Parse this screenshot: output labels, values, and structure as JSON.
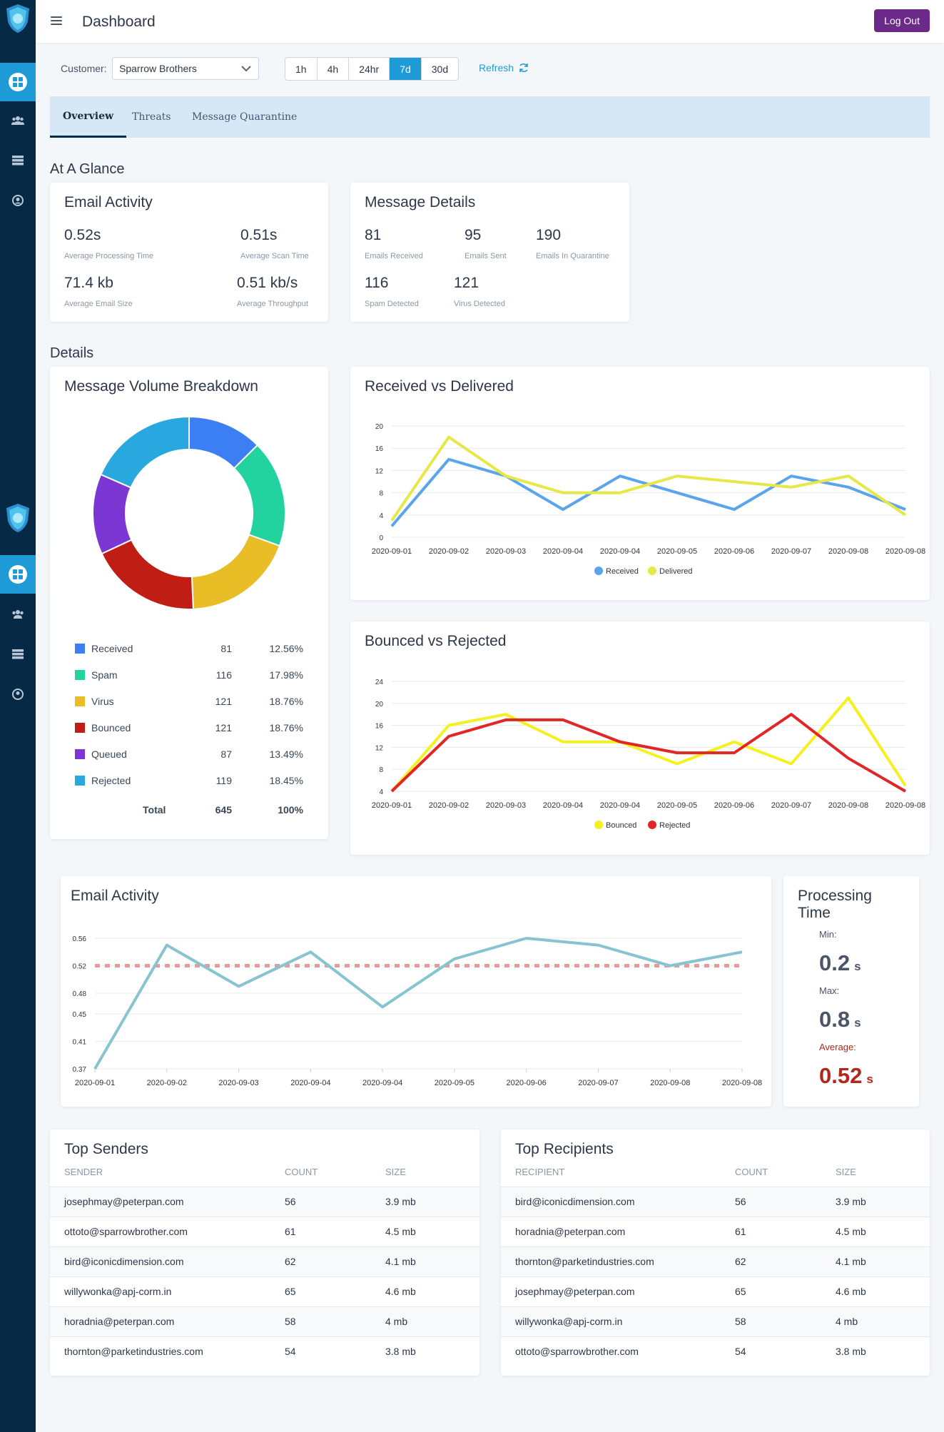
{
  "header": {
    "title": "Dashboard",
    "logout_label": "Log Out"
  },
  "sidebar": {
    "items": [
      {
        "name": "dashboard",
        "icon": "dashboard-icon"
      },
      {
        "name": "users",
        "icon": "users-icon"
      },
      {
        "name": "servers",
        "icon": "server-icon"
      },
      {
        "name": "account",
        "icon": "user-circle-icon"
      }
    ]
  },
  "filter": {
    "customer_label": "Customer:",
    "customer_value": "Sparrow Brothers",
    "ranges": [
      "1h",
      "4h",
      "24hr",
      "7d",
      "30d"
    ],
    "active_range": "7d",
    "refresh_label": "Refresh"
  },
  "tabs": [
    "Overview",
    "Threats",
    "Message Quarantine"
  ],
  "active_tab": "Overview",
  "sections": {
    "glance": "At A Glance",
    "details": "Details"
  },
  "email_activity_card": {
    "title": "Email Activity",
    "metrics": [
      {
        "value": "0.52s",
        "label": "Average Processing Time"
      },
      {
        "value": "0.51s",
        "label": "Average Scan Time"
      },
      {
        "value": "71.4 kb",
        "label": "Average Email Size"
      },
      {
        "value": "0.51 kb/s",
        "label": "Average Throughput"
      }
    ]
  },
  "message_details_card": {
    "title": "Message Details",
    "metrics": [
      {
        "value": "81",
        "label": "Emails Received"
      },
      {
        "value": "95",
        "label": "Emails Sent"
      },
      {
        "value": "190",
        "label": "Emails In Quarantine"
      },
      {
        "value": "116",
        "label": "Spam Detected"
      },
      {
        "value": "121",
        "label": "Virus Detected"
      }
    ]
  },
  "volume_card": {
    "title": "Message Volume Breakdown",
    "total_label": "Total",
    "total_count": "645",
    "total_pct": "100%"
  },
  "received_chart_title": "Received vs Delivered",
  "bounced_chart_title": "Bounced vs Rejected",
  "activity_chart_title": "Email Activity",
  "processing": {
    "title": "Processing Time",
    "min_label": "Min:",
    "min_value": "0.2",
    "min_unit": "s",
    "max_label": "Max:",
    "max_value": "0.8",
    "max_unit": "s",
    "avg_label": "Average:",
    "avg_value": "0.52",
    "avg_unit": "s"
  },
  "top_senders": {
    "title": "Top Senders",
    "columns": [
      "SENDER",
      "COUNT",
      "SIZE"
    ],
    "rows": [
      [
        "josephmay@peterpan.com",
        "56",
        "3.9 mb"
      ],
      [
        "ottoto@sparrowbrother.com",
        "61",
        "4.5 mb"
      ],
      [
        "bird@iconicdimension.com",
        "62",
        "4.1 mb"
      ],
      [
        "willywonka@apj-corm.in",
        "65",
        "4.6 mb"
      ],
      [
        "horadnia@peterpan.com",
        "58",
        "4 mb"
      ],
      [
        "thornton@parketindustries.com",
        "54",
        "3.8 mb"
      ]
    ]
  },
  "top_recipients": {
    "title": "Top Recipients",
    "columns": [
      "RECIPIENT",
      "COUNT",
      "SIZE"
    ],
    "rows": [
      [
        "bird@iconicdimension.com",
        "56",
        "3.9 mb"
      ],
      [
        "horadnia@peterpan.com",
        "61",
        "4.5 mb"
      ],
      [
        "thornton@parketindustries.com",
        "62",
        "4.1 mb"
      ],
      [
        "josephmay@peterpan.com",
        "65",
        "4.6 mb"
      ],
      [
        "willywonka@apj-corm.in",
        "58",
        "4 mb"
      ],
      [
        "ottoto@sparrowbrother.com",
        "54",
        "3.8 mb"
      ]
    ]
  },
  "colors": {
    "accent": "#1e9bd7",
    "sidebar": "#062a45",
    "logout": "#6b2a8a"
  },
  "chart_data": [
    {
      "id": "volume",
      "type": "pie",
      "categories": [
        "Received",
        "Spam",
        "Virus",
        "Bounced",
        "Queued",
        "Rejected"
      ],
      "values": [
        81,
        116,
        121,
        121,
        87,
        119
      ],
      "percentages": [
        "12.56%",
        "17.98%",
        "18.76%",
        "18.76%",
        "13.49%",
        "18.45%"
      ],
      "colors": [
        "#3b7ff2",
        "#22d3a0",
        "#e9bd25",
        "#c01d14",
        "#7b36d4",
        "#29a8e0"
      ]
    },
    {
      "id": "received",
      "type": "line",
      "x": [
        "2020-09-01",
        "2020-09-02",
        "2020-09-03",
        "2020-09-04",
        "2020-09-04",
        "2020-09-05",
        "2020-09-06",
        "2020-09-07",
        "2020-09-08",
        "2020-09-08"
      ],
      "yticks": [
        0,
        4,
        8,
        12,
        16,
        20
      ],
      "ylim": [
        0,
        20
      ],
      "series": [
        {
          "name": "Received",
          "color": "#5aa4ec",
          "values": [
            2,
            14,
            11,
            5,
            11,
            8,
            5,
            11,
            9,
            5
          ]
        },
        {
          "name": "Delivered",
          "color": "#e6e84a",
          "values": [
            3,
            18,
            11,
            8,
            8,
            11,
            10,
            9,
            11,
            4
          ]
        }
      ],
      "legend": "bottom"
    },
    {
      "id": "bounced",
      "type": "line",
      "x": [
        "2020-09-01",
        "2020-09-02",
        "2020-09-03",
        "2020-09-04",
        "2020-09-04",
        "2020-09-05",
        "2020-09-06",
        "2020-09-07",
        "2020-09-08",
        "2020-09-08"
      ],
      "yticks": [
        4,
        8,
        12,
        16,
        20,
        24
      ],
      "ylim": [
        4,
        24
      ],
      "series": [
        {
          "name": "Bounced",
          "color": "#f5f01f",
          "values": [
            4,
            16,
            18,
            13,
            13,
            9,
            13,
            9,
            21,
            5
          ]
        },
        {
          "name": "Rejected",
          "color": "#e02626",
          "values": [
            4,
            14,
            17,
            17,
            13,
            11,
            11,
            18,
            10,
            4
          ]
        }
      ],
      "legend": "bottom"
    },
    {
      "id": "activity",
      "type": "line",
      "x": [
        "2020-09-01",
        "2020-09-02",
        "2020-09-03",
        "2020-09-04",
        "2020-09-04",
        "2020-09-05",
        "2020-09-06",
        "2020-09-07",
        "2020-09-08",
        "2020-09-08"
      ],
      "yticks": [
        0.37,
        0.41,
        0.45,
        0.48,
        0.52,
        0.56
      ],
      "ylim": [
        0.37,
        0.56
      ],
      "series": [
        {
          "color": "#88c4d0",
          "values": [
            0.37,
            0.55,
            0.49,
            0.54,
            0.46,
            0.53,
            0.56,
            0.55,
            0.52,
            0.54
          ]
        }
      ],
      "average": 0.52,
      "average_color": "#e89a9a"
    }
  ]
}
